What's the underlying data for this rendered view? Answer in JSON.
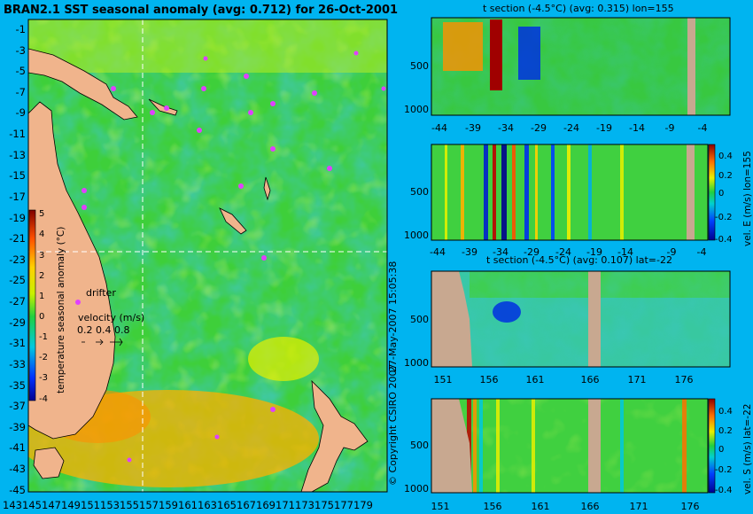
{
  "main_map": {
    "title": "BRAN2.1 SST seasonal anomaly (avg: 0.712) for 26-Oct-2001",
    "y_ticks": [
      "-1",
      "-3",
      "-5",
      "-7",
      "-9",
      "-11",
      "-13",
      "-15",
      "-17",
      "-19",
      "-21",
      "-23",
      "-25",
      "-27",
      "-29",
      "-31",
      "-33",
      "-35",
      "-37",
      "-39",
      "-41",
      "-43",
      "-45"
    ],
    "x_ticks": [
      "143",
      "145",
      "147",
      "149",
      "151",
      "153",
      "155",
      "157",
      "159",
      "161",
      "163",
      "165",
      "167",
      "169",
      "171",
      "173",
      "175",
      "177",
      "179"
    ],
    "colorbar": {
      "label": "temperature seasonal anomaly (°C)",
      "ticks": [
        "5",
        "4",
        "3",
        "2",
        "1",
        "0",
        "-1",
        "-2",
        "-3",
        "-4"
      ]
    },
    "legend": {
      "drifter": "drifter",
      "velocity_label": "velocity (m/s)",
      "velocity_values": "0.2 0.4 0.8"
    },
    "crosshair": {
      "lon": 155,
      "lat": -22
    }
  },
  "side_text": {
    "timestamp": "27-May-2007 15:05:38",
    "copyright": "© Copyright CSIRO 2007"
  },
  "panels": {
    "t_lon": {
      "title": "t section (-4.5°C) (avg: 0.315) lon=155",
      "y_ticks": [
        "500",
        "1000"
      ],
      "x_ticks": [
        "-44",
        "-39",
        "-34",
        "-29",
        "-24",
        "-19",
        "-14",
        "-9",
        "-4"
      ]
    },
    "v_lon": {
      "colorbar_label": "vel. E (m/s) lon=155",
      "colorbar_ticks": [
        "0.4",
        "0.2",
        "0",
        "-0.2",
        "-0.4"
      ],
      "y_ticks": [
        "500",
        "1000"
      ],
      "x_ticks": [
        "-44",
        "-39",
        "-34",
        "-29",
        "-24",
        "-19",
        "-14",
        "-9",
        "-4"
      ]
    },
    "t_lat": {
      "title": "t section (-4.5°C) (avg: 0.107) lat=-22",
      "y_ticks": [
        "500",
        "1000"
      ],
      "x_ticks": [
        "151",
        "156",
        "161",
        "166",
        "171",
        "176"
      ]
    },
    "v_lat": {
      "colorbar_label": "vel. S (m/s) lat=-22",
      "colorbar_ticks": [
        "0.4",
        "0.2",
        "0",
        "-0.2",
        "-0.4"
      ],
      "y_ticks": [
        "500",
        "1000"
      ],
      "x_ticks": [
        "151",
        "156",
        "161",
        "166",
        "171",
        "176"
      ]
    }
  },
  "colors": {
    "background": "#00b4f0",
    "ocean_green": "#3ecf3a",
    "land": "#f0b48c",
    "drifter": "#e040ff"
  },
  "chart_data": [
    {
      "type": "heatmap",
      "title": "BRAN2.1 SST seasonal anomaly (avg: 0.712) for 26-Oct-2001",
      "xlim": [
        143,
        180
      ],
      "ylim": [
        -45,
        0
      ],
      "colorbar_range": [
        -4,
        5
      ],
      "average": 0.712
    },
    {
      "type": "heatmap",
      "title": "t section (-4.5°C) (avg: 0.315) lon=155",
      "xlim": [
        -46,
        -1
      ],
      "ylim": [
        1100,
        0
      ],
      "average": 0.315
    },
    {
      "type": "heatmap",
      "title": "vel. E (m/s) lon=155",
      "xlim": [
        -46,
        -1
      ],
      "ylim": [
        1100,
        0
      ],
      "colorbar_range": [
        -0.4,
        0.4
      ]
    },
    {
      "type": "heatmap",
      "title": "t section (-4.5°C) (avg: 0.107) lat=-22",
      "xlim": [
        148,
        181
      ],
      "ylim": [
        1100,
        0
      ],
      "average": 0.107
    },
    {
      "type": "heatmap",
      "title": "vel. S (m/s) lat=-22",
      "xlim": [
        148,
        181
      ],
      "ylim": [
        1100,
        0
      ],
      "colorbar_range": [
        -0.4,
        0.4
      ]
    }
  ]
}
